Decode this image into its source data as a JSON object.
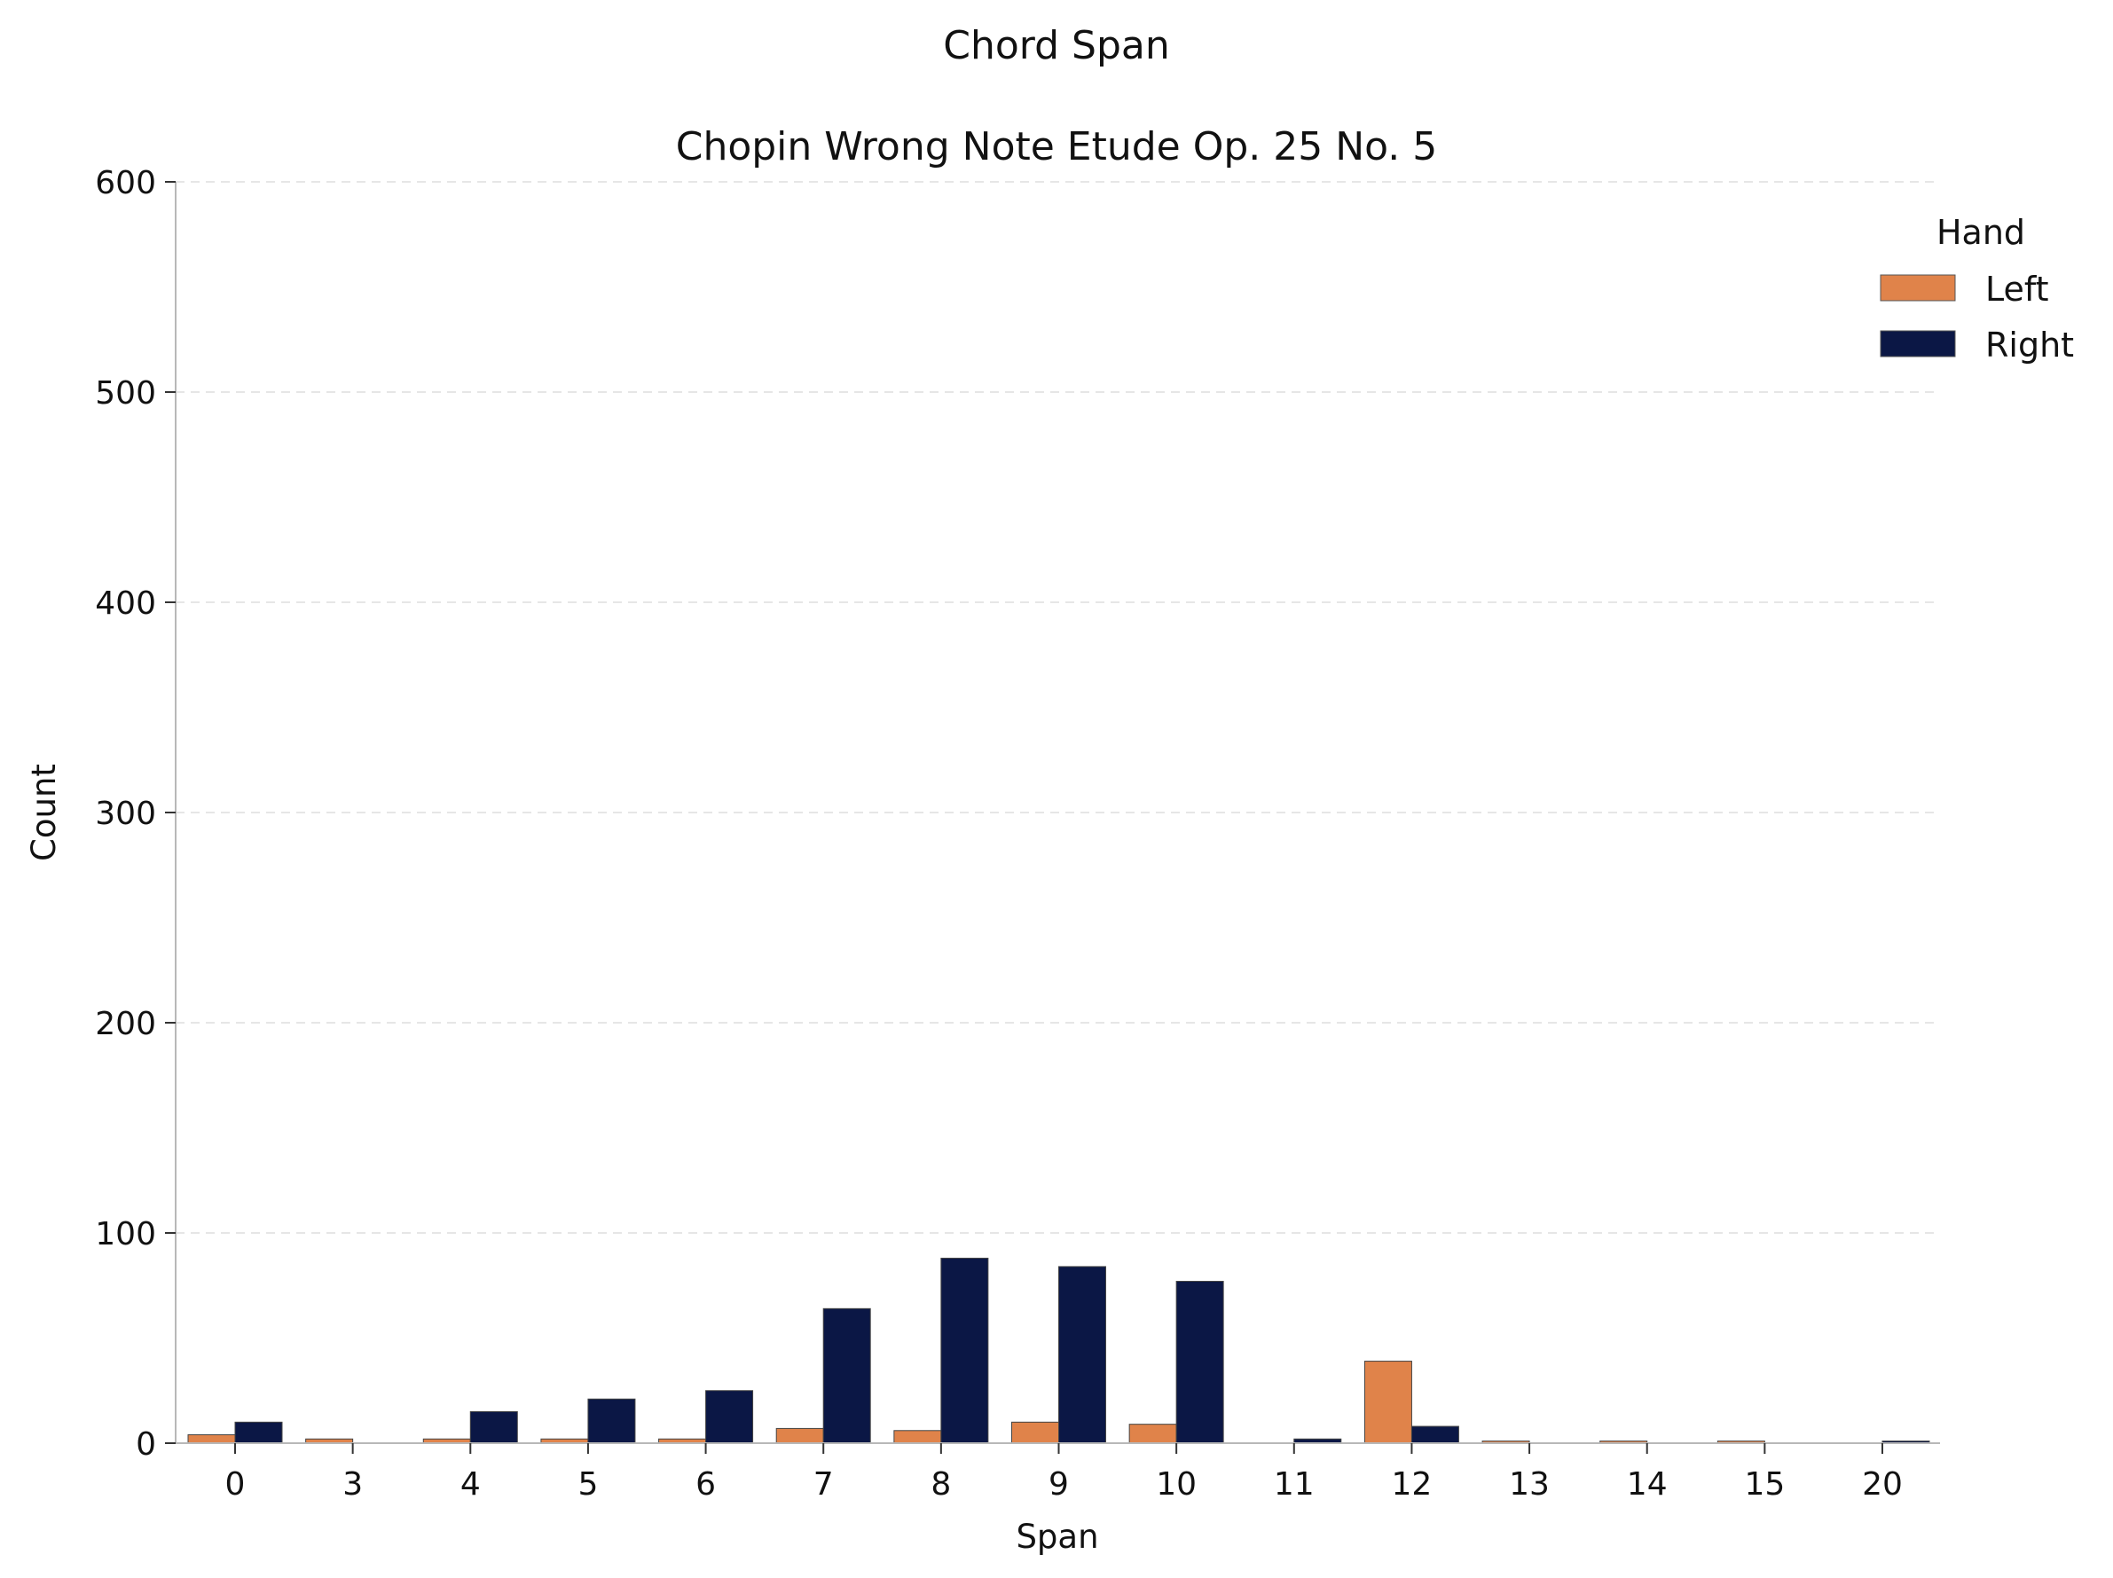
{
  "chart_data": {
    "type": "bar",
    "title": "Chord Span",
    "subtitle": "Chopin Wrong Note Etude Op. 25 No. 5",
    "xlabel": "Span",
    "ylabel": "Count",
    "categories": [
      "0",
      "3",
      "4",
      "5",
      "6",
      "7",
      "8",
      "9",
      "10",
      "11",
      "12",
      "13",
      "14",
      "15",
      "20"
    ],
    "ylim": [
      0,
      600
    ],
    "yticks": [
      "0",
      "100",
      "200",
      "300",
      "400",
      "500",
      "600"
    ],
    "grid": "y-dashed",
    "legend": {
      "title": "Hand",
      "placement": "top-right"
    },
    "series": [
      {
        "name": "Left",
        "color": "#e0834a",
        "values": [
          4,
          2,
          2,
          2,
          2,
          7,
          6,
          10,
          9,
          0,
          39,
          1,
          1,
          1,
          0
        ]
      },
      {
        "name": "Right",
        "color": "#0b1745",
        "values": [
          10,
          0,
          15,
          21,
          25,
          64,
          88,
          84,
          77,
          2,
          8,
          0,
          0,
          0,
          1
        ]
      }
    ]
  }
}
